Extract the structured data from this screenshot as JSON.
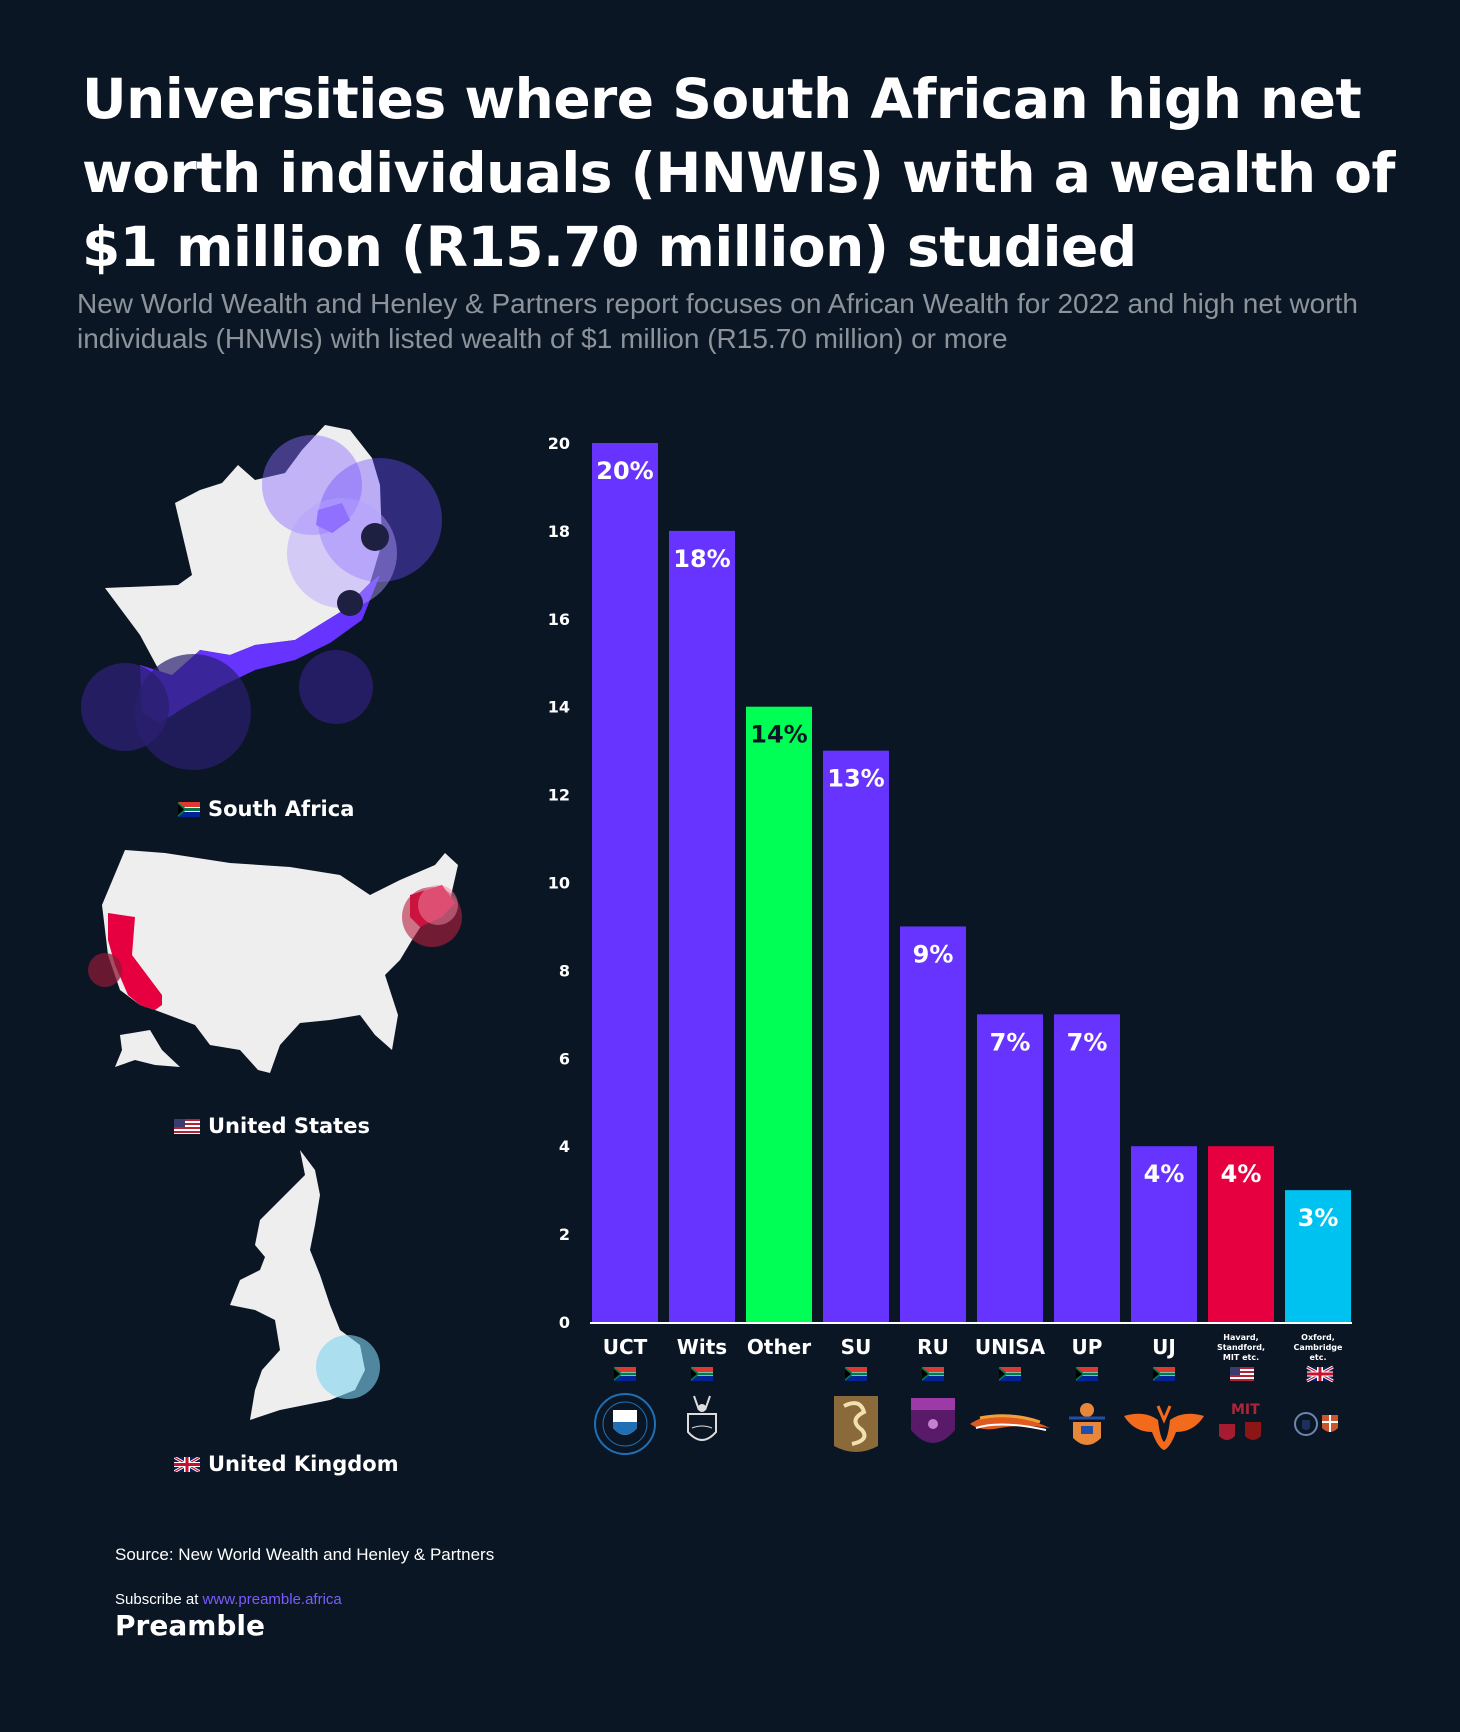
{
  "header": {
    "title": "Universities where South African high net worth individuals (HNWIs) with a wealth of $1 million (R15.70 million) studied",
    "subtitle": "New World Wealth and Henley & Partners report focuses on African Wealth for 2022 and high net worth individuals (HNWIs) with listed wealth of $1 million (R15.70 million) or more"
  },
  "maps": {
    "south_africa": {
      "label": "South Africa",
      "flag": "za-flag-icon"
    },
    "united_states": {
      "label": "United States",
      "flag": "us-flag-icon"
    },
    "united_kingdom": {
      "label": "United Kingdom",
      "flag": "uk-flag-icon"
    }
  },
  "colors": {
    "background": "#0b1624",
    "sa_bar": "#6633ff",
    "other_bar": "#00ff55",
    "us_bar": "#e60040",
    "uk_bar": "#00c2f0",
    "map_land": "#eeeeee",
    "sa_highlight": "#6633ff",
    "us_highlight": "#e60040",
    "uk_highlight": "#00c2f0"
  },
  "chart_data": {
    "type": "bar",
    "ylim": [
      0,
      20
    ],
    "yticks": [
      0,
      2,
      4,
      6,
      8,
      10,
      12,
      14,
      16,
      18,
      20
    ],
    "grid": false,
    "categories": [
      "UCT",
      "Wits",
      "Other",
      "SU",
      "RU",
      "UNISA",
      "UP",
      "UJ",
      "Havard, Standford, MIT etc.",
      "Oxford, Cambridge etc."
    ],
    "values": [
      20,
      18,
      14,
      13,
      9,
      7,
      7,
      4,
      4,
      3
    ],
    "data_labels": [
      "20%",
      "18%",
      "14%",
      "13%",
      "9%",
      "7%",
      "7%",
      "4%",
      "4%",
      "3%"
    ],
    "bar_colors": [
      "#6633ff",
      "#6633ff",
      "#00ff55",
      "#6633ff",
      "#6633ff",
      "#6633ff",
      "#6633ff",
      "#6633ff",
      "#e60040",
      "#00c2f0"
    ],
    "label_colors": [
      "#ffffff",
      "#ffffff",
      "#0b1624",
      "#ffffff",
      "#ffffff",
      "#ffffff",
      "#ffffff",
      "#ffffff",
      "#ffffff",
      "#ffffff"
    ],
    "category_flags": [
      "za",
      "za",
      "",
      "za",
      "za",
      "za",
      "za",
      "za",
      "us",
      "uk"
    ],
    "category_logos": [
      "uct-crest-icon",
      "wits-crest-icon",
      "",
      "su-logo-icon",
      "ru-crest-icon",
      "unisa-logo-icon",
      "up-crest-icon",
      "uj-logo-icon",
      "us-university-crests-icon",
      "uk-university-crests-icon"
    ]
  },
  "footer": {
    "source": "Source: New World Wealth and Henley & Partners",
    "subscribe_prefix": "Subscribe at ",
    "subscribe_link": "www.preamble.africa",
    "brand": "Preamble"
  }
}
